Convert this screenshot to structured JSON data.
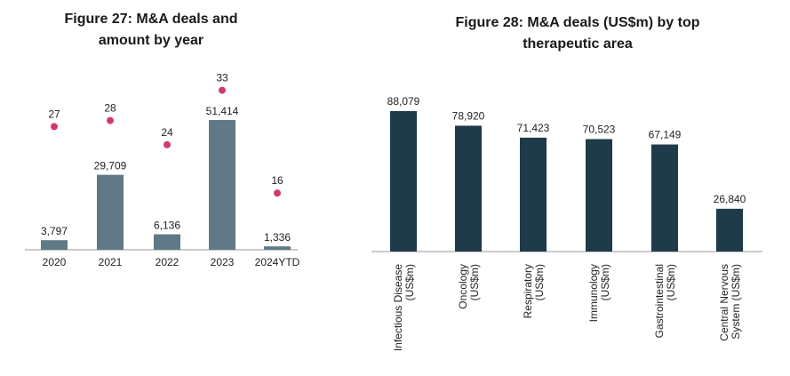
{
  "colors": {
    "bar_left": "#5f7a86",
    "dot": "#d2386c",
    "bar_right": "#1f3a48",
    "axis": "#999999",
    "text": "#222222"
  },
  "chart_data": [
    {
      "type": "bar",
      "title_line1": "Figure 27: M&A deals and",
      "title_line2": "amount by year",
      "categories": [
        "2020",
        "2021",
        "2022",
        "2023",
        "2024YTD"
      ],
      "series": [
        {
          "values": [
            3797,
            29709,
            6136,
            51414,
            1336
          ],
          "labels": [
            "3,797",
            "29,709",
            "6,136",
            "51,414",
            "1,336"
          ]
        },
        {
          "values": [
            27,
            28,
            24,
            33,
            16
          ],
          "labels": [
            "27",
            "28",
            "24",
            "33",
            "16"
          ]
        }
      ]
    },
    {
      "type": "bar",
      "title_line1": "Figure 28: M&A deals (US$m) by top",
      "title_line2": "therapeutic area",
      "categories": [
        [
          "Infectious Disease",
          "(US$m)"
        ],
        [
          "Oncology",
          "(US$m)"
        ],
        [
          "Respiratory",
          "(US$m)"
        ],
        [
          "Immunology",
          "(US$m)"
        ],
        [
          "Gastrointestinal",
          "(US$m)"
        ],
        [
          "Central Nervous",
          "System (US$m)"
        ]
      ],
      "values": [
        88079,
        78920,
        71423,
        70523,
        67149,
        26840
      ],
      "value_labels": [
        "88,079",
        "78,920",
        "71,423",
        "70,523",
        "67,149",
        "26,840"
      ]
    }
  ]
}
